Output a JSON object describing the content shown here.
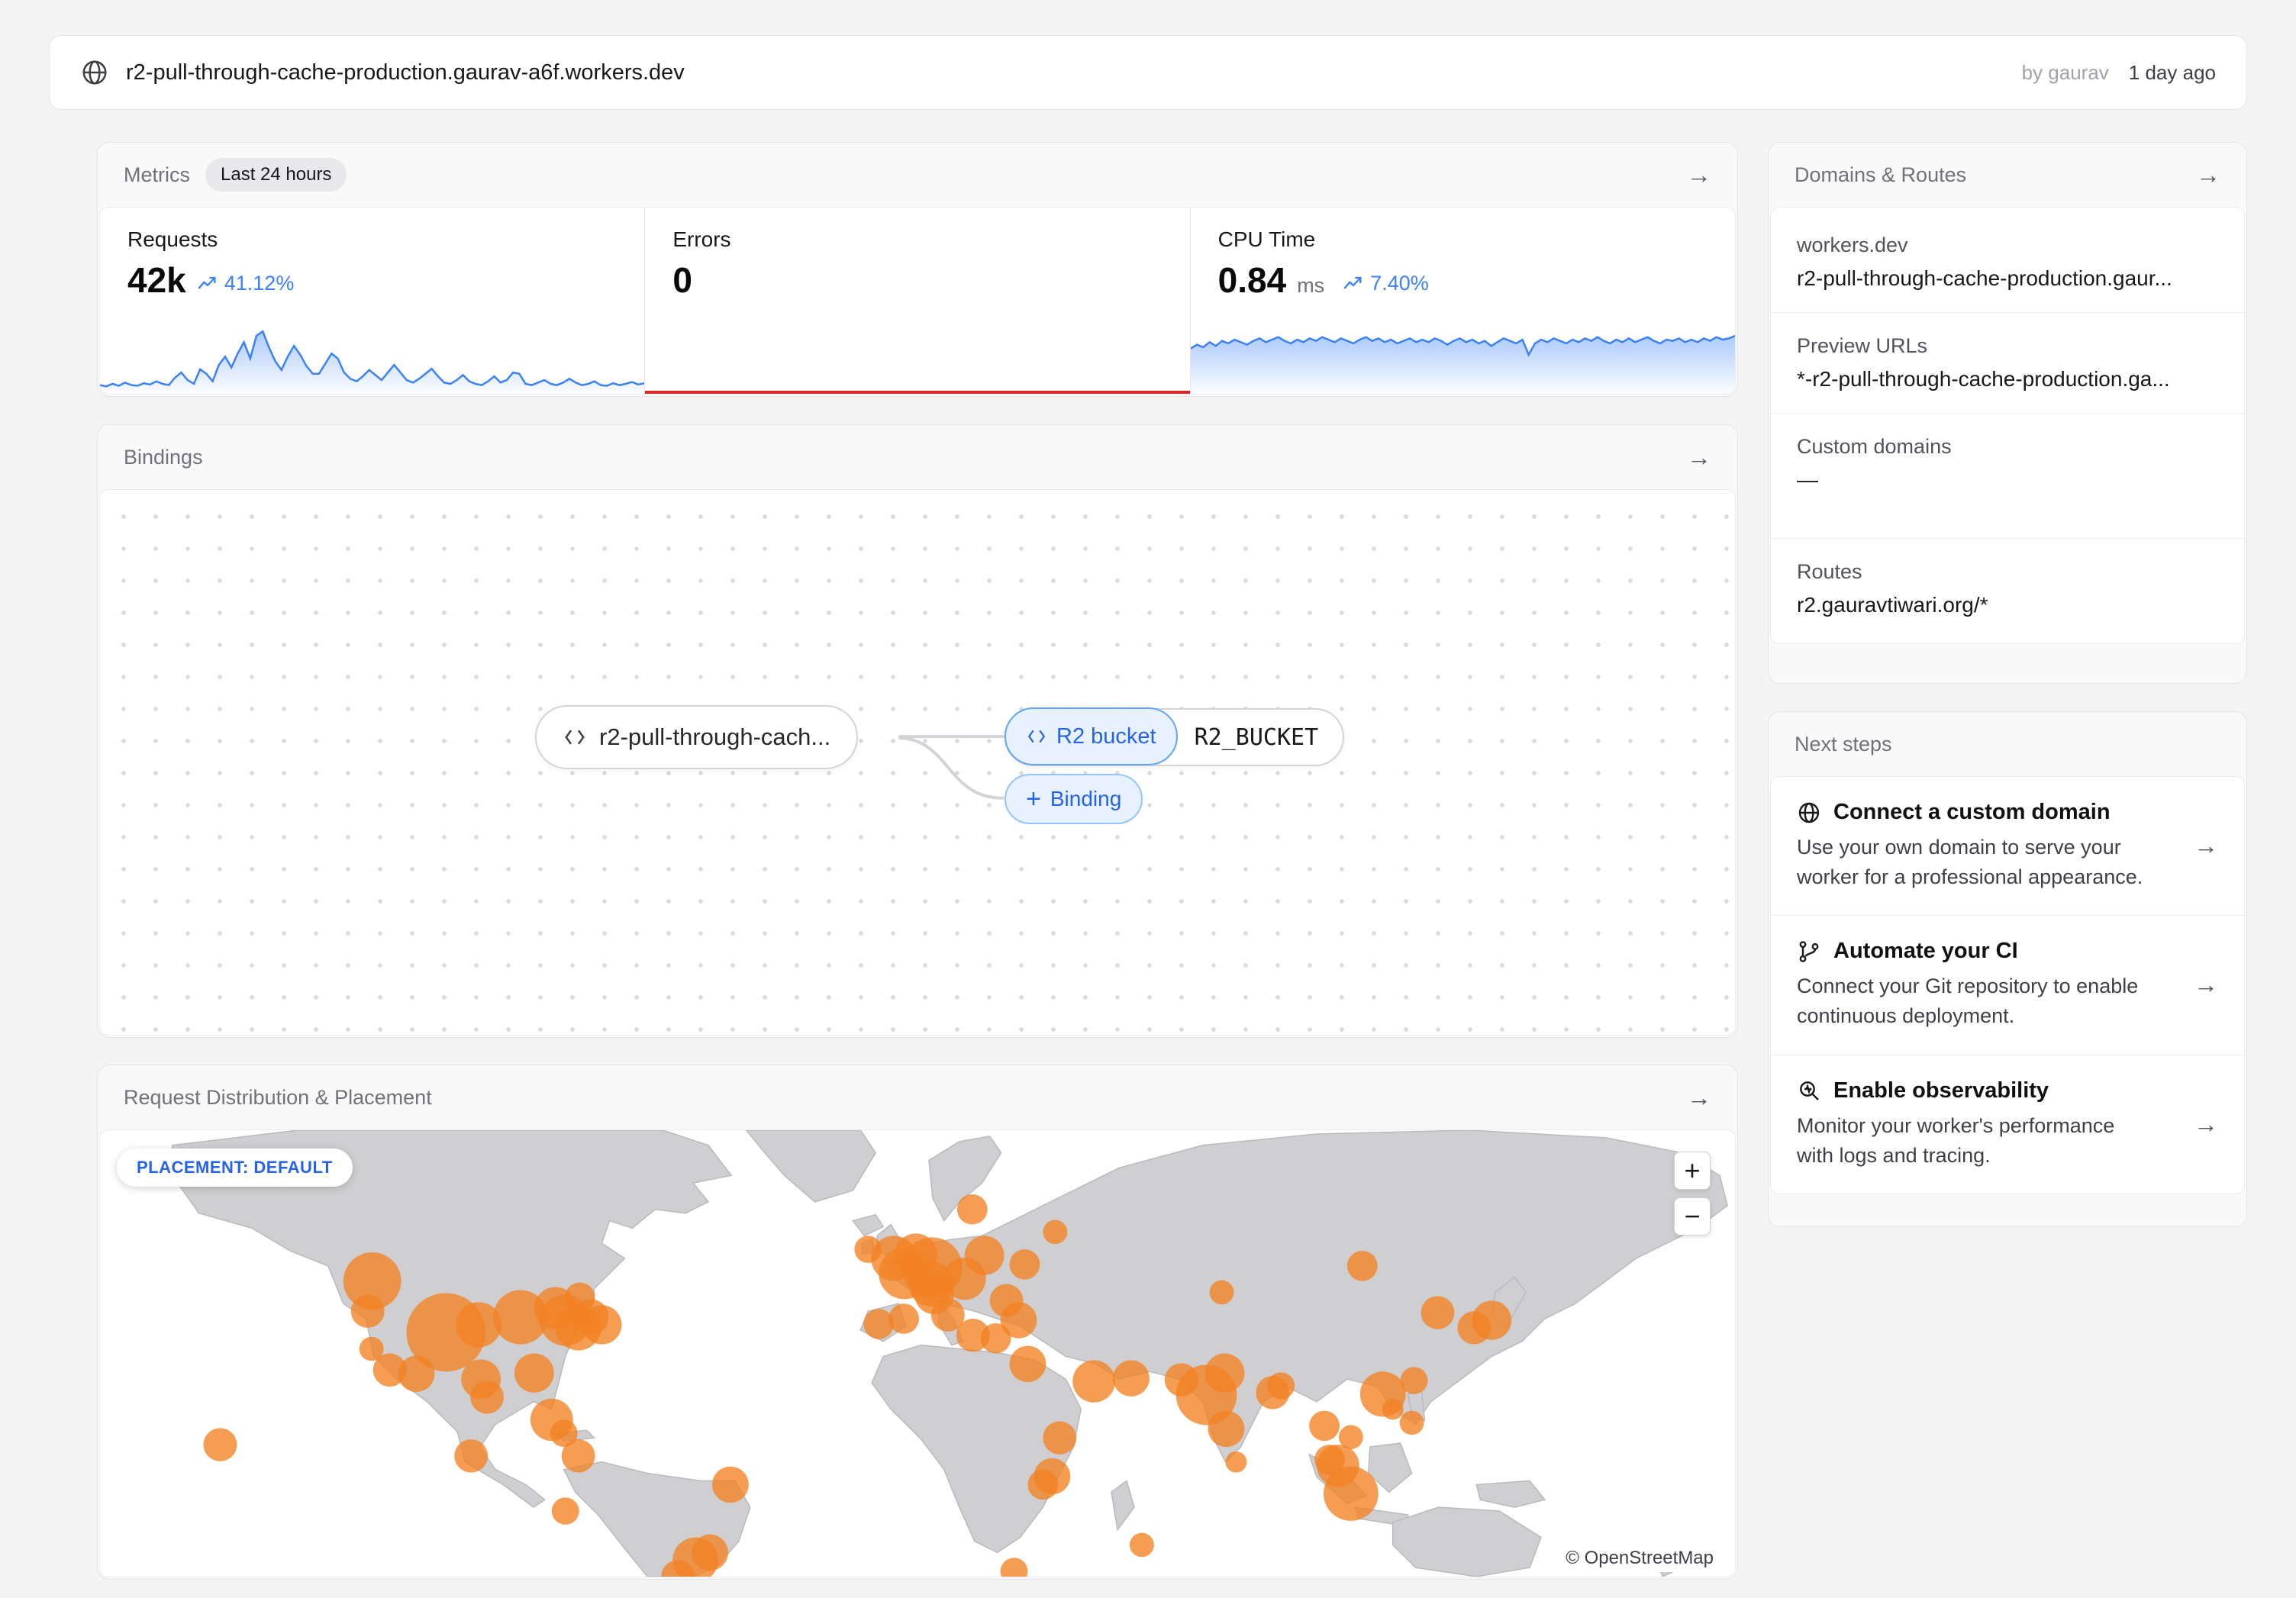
{
  "topbar": {
    "url": "r2-pull-through-cache-production.gaurav-a6f.workers.dev",
    "author": "by gaurav",
    "time": "1 day ago"
  },
  "metrics": {
    "title": "Metrics",
    "badge": "Last 24 hours",
    "requests": {
      "label": "Requests",
      "value": "42k",
      "trend": "41.12%"
    },
    "errors": {
      "label": "Errors",
      "value": "0"
    },
    "cpu": {
      "label": "CPU Time",
      "value": "0.84",
      "unit": "ms",
      "trend": "7.40%"
    }
  },
  "chart_data": [
    {
      "type": "line",
      "title": "Requests sparkline (last 24 hours)",
      "ylim": [
        0,
        100
      ],
      "grid": false,
      "legend_position": "none",
      "values": [
        10,
        8,
        12,
        9,
        14,
        10,
        9,
        13,
        11,
        16,
        12,
        10,
        22,
        30,
        18,
        12,
        35,
        28,
        16,
        42,
        55,
        38,
        60,
        78,
        52,
        88,
        95,
        70,
        48,
        34,
        55,
        72,
        58,
        40,
        28,
        28,
        44,
        60,
        52,
        30,
        20,
        16,
        24,
        34,
        26,
        18,
        30,
        42,
        30,
        18,
        14,
        20,
        28,
        36,
        24,
        14,
        12,
        18,
        26,
        16,
        12,
        10,
        16,
        24,
        14,
        18,
        30,
        28,
        12,
        10,
        14,
        18,
        12,
        10,
        14,
        20,
        14,
        10,
        12,
        16,
        10,
        9,
        13,
        10,
        12,
        15,
        11,
        13
      ]
    },
    {
      "type": "line",
      "title": "Errors sparkline (last 24 hours)",
      "ylim": [
        0,
        100
      ],
      "grid": false,
      "legend_position": "none",
      "values": [
        0,
        0,
        0,
        0,
        0,
        0,
        0,
        0,
        0,
        0,
        0,
        0,
        0,
        0,
        0,
        0,
        0,
        0,
        0,
        0,
        0,
        0,
        0,
        0,
        0,
        0,
        0,
        0,
        0,
        0,
        0,
        0,
        0,
        0,
        0,
        0,
        0,
        0,
        0,
        0
      ]
    },
    {
      "type": "line",
      "title": "CPU Time sparkline (last 24 hours)",
      "ylim": [
        0,
        100
      ],
      "grid": false,
      "legend_position": "none",
      "values": [
        68,
        74,
        70,
        78,
        72,
        80,
        76,
        82,
        78,
        74,
        80,
        84,
        78,
        82,
        86,
        80,
        76,
        82,
        78,
        84,
        80,
        86,
        82,
        78,
        84,
        80,
        76,
        82,
        86,
        80,
        84,
        78,
        82,
        76,
        80,
        84,
        78,
        82,
        78,
        84,
        80,
        74,
        80,
        84,
        78,
        82,
        76,
        80,
        72,
        78,
        84,
        80,
        76,
        82,
        58,
        76,
        82,
        78,
        84,
        80,
        76,
        82,
        78,
        84,
        80,
        86,
        80,
        76,
        82,
        78,
        84,
        78,
        82,
        86,
        80,
        76,
        82,
        80,
        84,
        78,
        82,
        78,
        84,
        80,
        86,
        82,
        84,
        88
      ]
    }
  ],
  "bindings": {
    "title": "Bindings",
    "worker_label": "r2-pull-through-cach...",
    "r2_type": "R2 bucket",
    "r2_name": "R2_BUCKET",
    "add_label": "Binding",
    "add_plus": "+"
  },
  "map": {
    "title": "Request Distribution & Placement",
    "badge": "PLACEMENT: DEFAULT",
    "zoom_in": "+",
    "zoom_out": "−",
    "attribution": "© OpenStreetMap",
    "bubbles": [
      [
        358,
        200,
        38
      ],
      [
        352,
        240,
        22
      ],
      [
        455,
        268,
        52
      ],
      [
        498,
        258,
        30
      ],
      [
        553,
        248,
        36
      ],
      [
        612,
        252,
        34
      ],
      [
        629,
        262,
        30
      ],
      [
        599,
        236,
        28
      ],
      [
        645,
        248,
        24
      ],
      [
        631,
        222,
        20
      ],
      [
        660,
        258,
        26
      ],
      [
        357,
        290,
        16
      ],
      [
        381,
        318,
        22
      ],
      [
        416,
        323,
        24
      ],
      [
        501,
        330,
        26
      ],
      [
        509,
        354,
        22
      ],
      [
        571,
        322,
        26
      ],
      [
        594,
        384,
        28
      ],
      [
        488,
        432,
        22
      ],
      [
        610,
        402,
        18
      ],
      [
        158,
        417,
        22
      ],
      [
        629,
        432,
        22
      ],
      [
        612,
        505,
        18
      ],
      [
        829,
        470,
        24
      ],
      [
        802,
        560,
        24
      ],
      [
        783,
        570,
        30
      ],
      [
        760,
        592,
        22
      ],
      [
        1010,
        158,
        18
      ],
      [
        1044,
        170,
        30
      ],
      [
        1058,
        190,
        34
      ],
      [
        1073,
        165,
        28
      ],
      [
        1094,
        182,
        40
      ],
      [
        1093,
        204,
        30
      ],
      [
        1097,
        218,
        26
      ],
      [
        1115,
        245,
        22
      ],
      [
        1147,
        105,
        20
      ],
      [
        1163,
        166,
        26
      ],
      [
        1137,
        197,
        28
      ],
      [
        1192,
        226,
        22
      ],
      [
        1178,
        276,
        20
      ],
      [
        1208,
        252,
        24
      ],
      [
        1216,
        178,
        20
      ],
      [
        1256,
        135,
        16
      ],
      [
        1024,
        257,
        20
      ],
      [
        1057,
        250,
        20
      ],
      [
        1148,
        272,
        22
      ],
      [
        1220,
        310,
        24
      ],
      [
        1307,
        333,
        28
      ],
      [
        1356,
        329,
        24
      ],
      [
        1252,
        459,
        24
      ],
      [
        1262,
        408,
        22
      ],
      [
        1240,
        470,
        20
      ],
      [
        1370,
        550,
        16
      ],
      [
        1202,
        585,
        18
      ],
      [
        1475,
        215,
        16
      ],
      [
        1660,
        180,
        20
      ],
      [
        1422,
        331,
        22
      ],
      [
        1479,
        322,
        26
      ],
      [
        1455,
        351,
        40
      ],
      [
        1481,
        396,
        24
      ],
      [
        1494,
        440,
        14
      ],
      [
        1542,
        348,
        22
      ],
      [
        1553,
        339,
        18
      ],
      [
        1610,
        392,
        20
      ],
      [
        1645,
        407,
        16
      ],
      [
        1687,
        350,
        30
      ],
      [
        1728,
        332,
        18
      ],
      [
        1759,
        242,
        22
      ],
      [
        1807,
        262,
        22
      ],
      [
        1830,
        252,
        26
      ],
      [
        1725,
        388,
        16
      ],
      [
        1628,
        445,
        28
      ],
      [
        1617,
        437,
        20
      ],
      [
        1645,
        482,
        36
      ],
      [
        1700,
        370,
        14
      ]
    ]
  },
  "domains": {
    "title": "Domains & Routes",
    "rows": [
      {
        "label": "workers.dev",
        "value": "r2-pull-through-cache-production.gaur..."
      },
      {
        "label": "Preview URLs",
        "value": "*-r2-pull-through-cache-production.ga..."
      },
      {
        "label": "Custom domains",
        "value": "—"
      },
      {
        "label": "Routes",
        "value": "r2.gauravtiwari.org/*"
      }
    ]
  },
  "next_steps": {
    "title": "Next steps",
    "items": [
      {
        "title": "Connect a custom domain",
        "desc": "Use your own domain to serve your worker for a professional appearance."
      },
      {
        "title": "Automate your CI",
        "desc": "Connect your Git repository to enable continuous deployment."
      },
      {
        "title": "Enable observability",
        "desc": "Monitor your worker's performance with logs and tracing."
      }
    ]
  },
  "colors": {
    "accent_blue": "#3b82f6",
    "link_blue": "#2563eb",
    "error_red": "#dc2626",
    "bubble_orange": "rgba(242,130,35,0.78)",
    "land_gray": "#cfcfd2",
    "land_border": "#b9b9be"
  }
}
